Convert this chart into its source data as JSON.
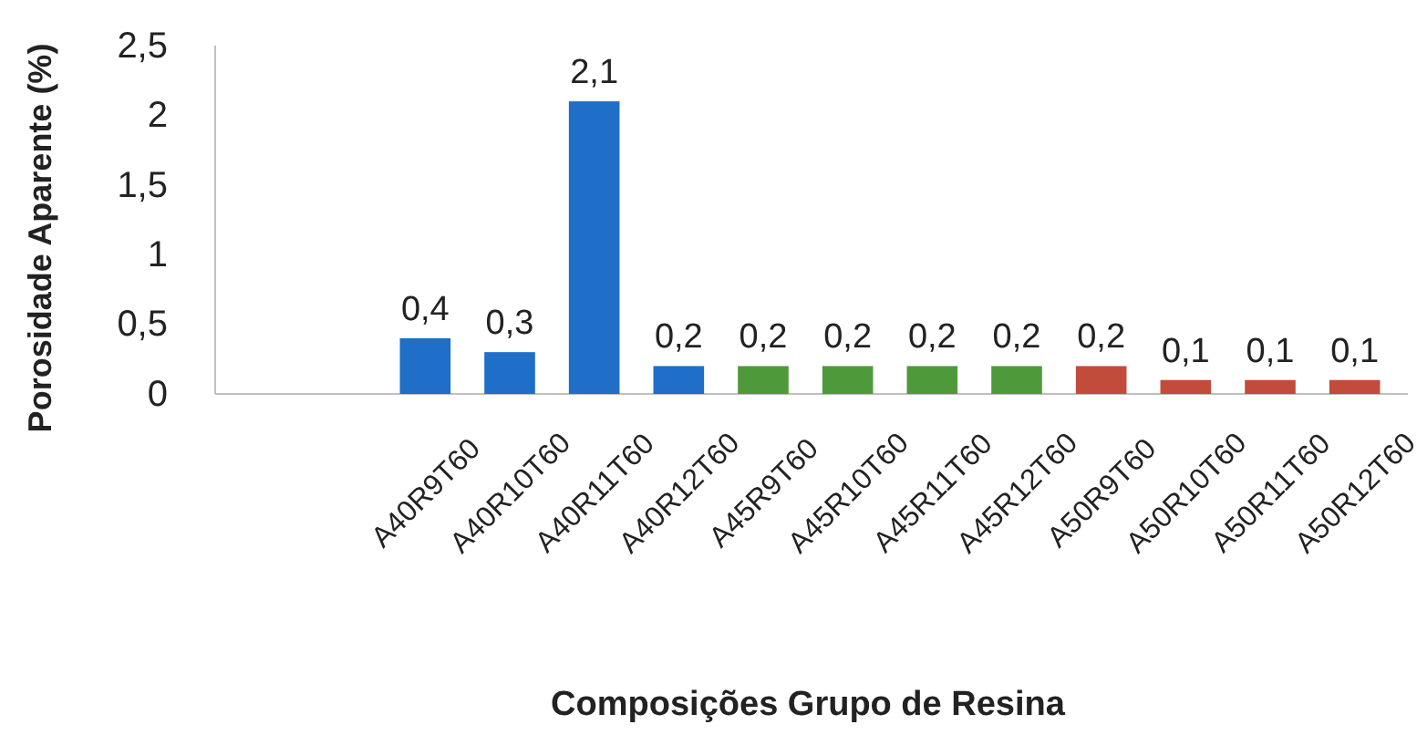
{
  "chart_data": {
    "type": "bar",
    "xlabel": "Composições Grupo de Resina",
    "ylabel": "Porosidade Aparente (%)",
    "categories": [
      "A40R9T60",
      "A40R10T60",
      "A40R11T60",
      "A40R12T60",
      "A45R9T60",
      "A45R10T60",
      "A45R11T60",
      "A45R12T60",
      "A50R9T60",
      "A50R10T60",
      "A50R11T60",
      "A50R12T60"
    ],
    "values": [
      0.4,
      0.3,
      2.1,
      0.2,
      0.2,
      0.2,
      0.2,
      0.2,
      0.2,
      0.1,
      0.1,
      0.1
    ],
    "colors": [
      "#1f6ec8",
      "#1f6ec8",
      "#1f6ec8",
      "#1f6ec8",
      "#4e9a3a",
      "#4e9a3a",
      "#4e9a3a",
      "#4e9a3a",
      "#c24b3c",
      "#c24b3c",
      "#c24b3c",
      "#c24b3c"
    ],
    "value_labels": [
      "0,4",
      "0,3",
      "2,1",
      "0,2",
      "0,2",
      "0,2",
      "0,2",
      "0,2",
      "0,2",
      "0,1",
      "0,1",
      "0,1"
    ],
    "ylim": [
      0,
      2.5
    ],
    "yticks": [
      0,
      {
        "value": 0.5,
        "label": "0,5"
      },
      1,
      {
        "value": 1.5,
        "label": "1,5"
      },
      2,
      {
        "value": 2.5,
        "label": "2,5"
      }
    ]
  }
}
